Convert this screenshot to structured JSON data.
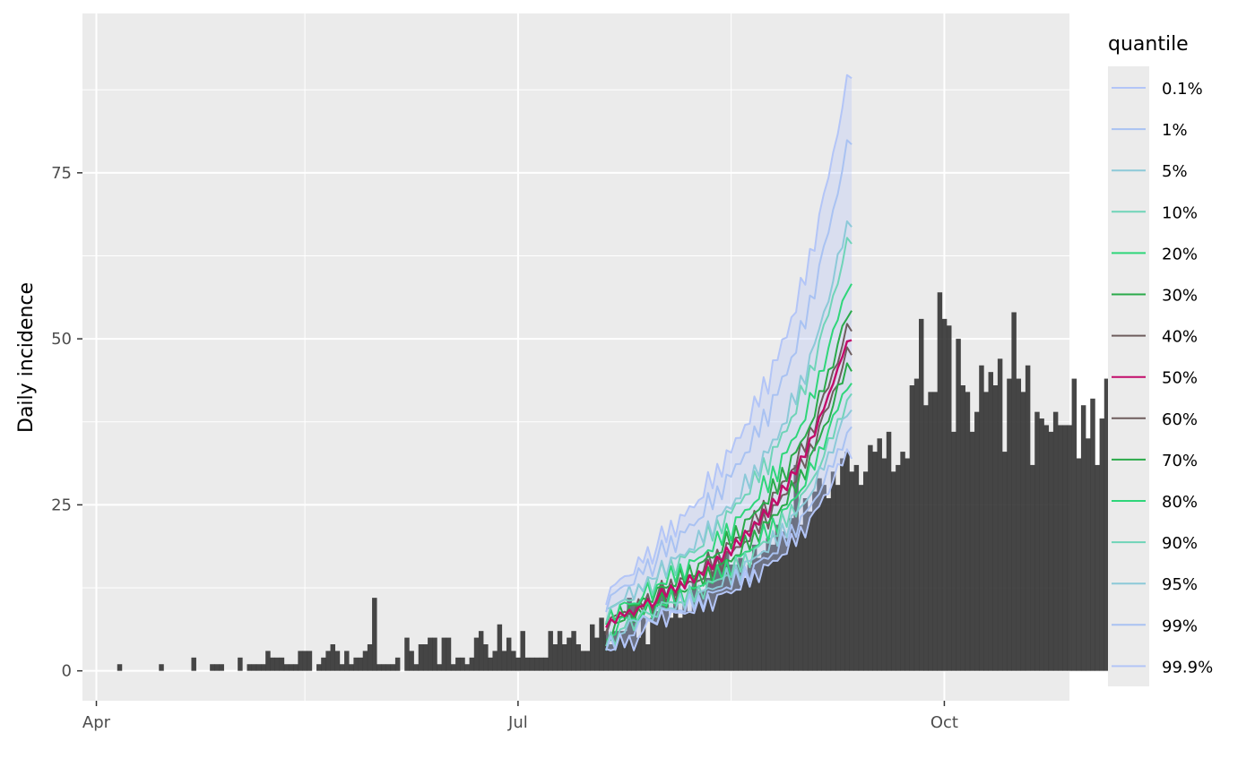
{
  "chart_data": {
    "type": "bar",
    "title": "",
    "xlabel": "",
    "ylabel": "Daily incidence",
    "x_axis": {
      "type": "date",
      "range": [
        "2020-03-29",
        "2020-10-28"
      ],
      "ticks": [
        {
          "date": "2020-04-01",
          "label": "Apr"
        },
        {
          "date": "2020-07-01",
          "label": "Jul"
        },
        {
          "date": "2020-10-01",
          "label": "Oct"
        }
      ],
      "minor_gridlines": [
        "2020-05-16",
        "2020-08-16"
      ]
    },
    "y_axis": {
      "range": [
        -4.5,
        99
      ],
      "ticks": [
        0,
        25,
        50,
        75
      ],
      "minor_gridlines": [
        12.5,
        37.5,
        62.5,
        87.5
      ]
    },
    "grid": true,
    "background_color": "#ebebeb",
    "grid_color": "#ffffff",
    "bar_color": "#333333",
    "bar_opacity": 0.9,
    "incidence": {
      "start_date": "2020-04-01",
      "counts": [
        0,
        0,
        0,
        0,
        0,
        1,
        0,
        0,
        0,
        0,
        0,
        0,
        0,
        0,
        1,
        0,
        0,
        0,
        0,
        0,
        0,
        2,
        0,
        0,
        0,
        1,
        1,
        1,
        0,
        0,
        0,
        2,
        0,
        1,
        1,
        1,
        1,
        3,
        2,
        2,
        2,
        1,
        1,
        1,
        3,
        3,
        3,
        0,
        1,
        2,
        3,
        4,
        3,
        1,
        3,
        1,
        2,
        2,
        3,
        4,
        11,
        1,
        1,
        1,
        1,
        2,
        0,
        5,
        3,
        1,
        4,
        4,
        5,
        5,
        1,
        5,
        5,
        1,
        2,
        2,
        1,
        2,
        5,
        6,
        4,
        2,
        3,
        7,
        3,
        5,
        3,
        2,
        6,
        2,
        2,
        2,
        2,
        2,
        6,
        4,
        6,
        4,
        5,
        6,
        4,
        3,
        3,
        7,
        5,
        8,
        6,
        4,
        6,
        6,
        6,
        11,
        10,
        5,
        8,
        4,
        8,
        9,
        12,
        10,
        8,
        11,
        8,
        10,
        9,
        14,
        12,
        12,
        14,
        15,
        16,
        17,
        18,
        16,
        16,
        17,
        14,
        16,
        19,
        17,
        18,
        20,
        19,
        22,
        21,
        20,
        23,
        31,
        22,
        26,
        24,
        27,
        29,
        28,
        26,
        30,
        28,
        32,
        33,
        30,
        31,
        28,
        30,
        34,
        33,
        35,
        32,
        36,
        30,
        31,
        33,
        32,
        43,
        44,
        53,
        40,
        42,
        42,
        57,
        53,
        52,
        36,
        50,
        43,
        42,
        36,
        39,
        46,
        42,
        45,
        43,
        47,
        33,
        44,
        54,
        44,
        42,
        46,
        31,
        39,
        38,
        37,
        36,
        39,
        37,
        37,
        37,
        44,
        32,
        40,
        35,
        41,
        31,
        38,
        44
      ]
    },
    "forecast": {
      "start_date": "2020-07-20",
      "quantile_50": [
        6.5,
        7.8,
        7.2,
        8.8,
        8.2,
        9.2,
        8.4,
        9.6,
        9.8,
        10.8,
        9.6,
        10.8,
        12.3,
        11.2,
        12.9,
        11.8,
        13.5,
        12.4,
        14.4,
        13.3,
        15.0,
        14.4,
        16.4,
        15.3,
        17.2,
        16.5,
        18.6,
        17.4,
        19.8,
        18.9,
        21.1,
        20.3,
        22.4,
        22.0,
        24.3,
        23.2,
        25.9,
        25.0,
        27.9,
        27.2,
        30.0,
        29.6,
        32.3,
        32.2,
        35.0,
        35.4,
        38.2,
        39.4,
        41.6,
        43.2,
        45.6,
        47.3,
        49.6,
        49.8
      ],
      "quantile_lines": [
        {
          "q": "40%",
          "offset": 1.8
        },
        {
          "q": "60%",
          "offset": -1.8
        },
        {
          "q": "30%",
          "offset": 4.0
        },
        {
          "q": "70%",
          "offset": -3.8
        },
        {
          "q": "20%",
          "offset": 8.5
        },
        {
          "q": "80%",
          "offset": -6.5
        },
        {
          "q": "10%",
          "offset": 15.0
        },
        {
          "q": "90%",
          "offset": -9.0
        },
        {
          "q": "5%",
          "offset": 18.0
        },
        {
          "q": "95%",
          "offset": -11.0
        },
        {
          "q": "1%",
          "offset": 30.0
        },
        {
          "q": "99%",
          "offset": -14.0
        },
        {
          "q": "0.1%",
          "offset": 40.0
        },
        {
          "q": "99.9%",
          "offset": -17.0
        }
      ],
      "band_color": "#b7c6f5",
      "band_opacity": 0.35
    },
    "legend": {
      "title": "quantile",
      "position": "right",
      "entries": [
        {
          "label": "0.1%",
          "color": "#b3c5f7"
        },
        {
          "label": "1%",
          "color": "#a9c2f2"
        },
        {
          "label": "5%",
          "color": "#8cc9d8"
        },
        {
          "label": "10%",
          "color": "#6fd4b8"
        },
        {
          "label": "20%",
          "color": "#2fd67a"
        },
        {
          "label": "30%",
          "color": "#2aaa4a"
        },
        {
          "label": "40%",
          "color": "#6e5d5d"
        },
        {
          "label": "50%",
          "color": "#c20c6a"
        },
        {
          "label": "60%",
          "color": "#6e5d5d"
        },
        {
          "label": "70%",
          "color": "#2aaa4a"
        },
        {
          "label": "80%",
          "color": "#2fd67a"
        },
        {
          "label": "90%",
          "color": "#6fd4b8"
        },
        {
          "label": "95%",
          "color": "#8cc9d8"
        },
        {
          "label": "99%",
          "color": "#a9c2f2"
        },
        {
          "label": "99.9%",
          "color": "#b3c5f7"
        }
      ]
    }
  }
}
